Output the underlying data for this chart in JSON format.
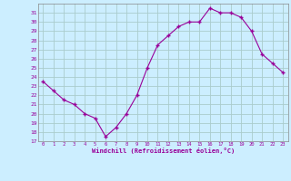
{
  "x": [
    0,
    1,
    2,
    3,
    4,
    5,
    6,
    7,
    8,
    9,
    10,
    11,
    12,
    13,
    14,
    15,
    16,
    17,
    18,
    19,
    20,
    21,
    22,
    23
  ],
  "y": [
    23.5,
    22.5,
    21.5,
    21.0,
    20.0,
    19.5,
    17.5,
    18.5,
    20.0,
    22.0,
    25.0,
    27.5,
    28.5,
    29.5,
    30.0,
    30.0,
    31.5,
    31.0,
    31.0,
    30.5,
    29.0,
    26.5,
    25.5,
    24.5
  ],
  "line_color": "#990099",
  "marker": "+",
  "marker_size": 3,
  "marker_lw": 1.0,
  "bg_color": "#cceeff",
  "grid_color": "#aacccc",
  "xlabel": "Windchill (Refroidissement éolien,°C)",
  "xlabel_color": "#990099",
  "tick_color": "#990099",
  "ylim": [
    17,
    32
  ],
  "xlim": [
    -0.5,
    23.5
  ],
  "yticks": [
    17,
    18,
    19,
    20,
    21,
    22,
    23,
    24,
    25,
    26,
    27,
    28,
    29,
    30,
    31
  ],
  "xticks": [
    0,
    1,
    2,
    3,
    4,
    5,
    6,
    7,
    8,
    9,
    10,
    11,
    12,
    13,
    14,
    15,
    16,
    17,
    18,
    19,
    20,
    21,
    22,
    23
  ],
  "xtick_labels": [
    "0",
    "1",
    "2",
    "3",
    "4",
    "5",
    "6",
    "7",
    "8",
    "9",
    "10",
    "11",
    "12",
    "13",
    "14",
    "15",
    "16",
    "17",
    "18",
    "19",
    "20",
    "21",
    "22",
    "23"
  ]
}
